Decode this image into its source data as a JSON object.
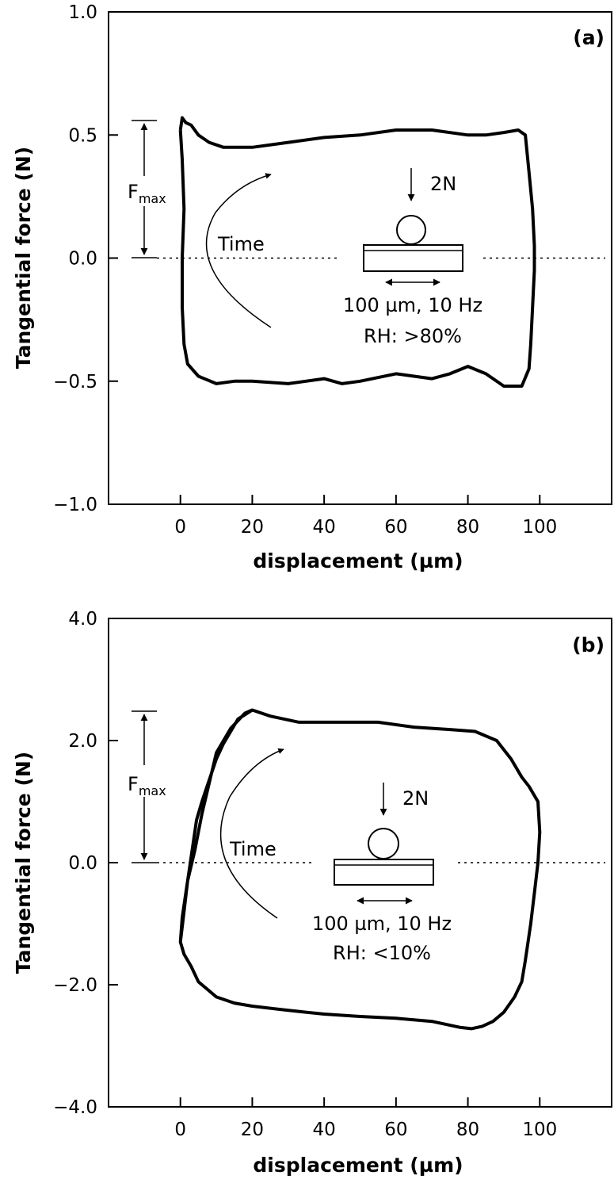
{
  "chart_data": [
    {
      "type": "line",
      "panel_label": "(a)",
      "xlabel": "displacement (µm)",
      "ylabel": "Tangential force (N)",
      "xlim": [
        -20,
        120
      ],
      "ylim": [
        -1.0,
        1.0
      ],
      "x_ticks": [
        0,
        20,
        40,
        60,
        80,
        100
      ],
      "x_tick_labels": [
        "0",
        "20",
        "40",
        "60",
        "80",
        "100"
      ],
      "y_ticks": [
        -1.0,
        -0.5,
        0.0,
        0.5,
        1.0
      ],
      "y_tick_labels": [
        "−1.0",
        "−0.5",
        "0.0",
        "0.5",
        "1.0"
      ],
      "grid": false,
      "zero_line": "dotted",
      "loop": {
        "x": [
          0,
          0.5,
          1.5,
          3,
          5,
          8,
          12,
          20,
          30,
          40,
          50,
          60,
          70,
          80,
          85,
          90,
          94,
          96,
          97,
          98,
          98.5,
          98.5,
          98,
          97.5,
          97,
          95,
          90,
          85,
          80,
          75,
          70,
          65,
          60,
          50,
          45,
          40,
          30,
          20,
          15,
          10,
          5,
          2,
          1,
          0.5,
          0.5,
          1,
          0.5,
          0
        ],
        "y": [
          0.52,
          0.57,
          0.55,
          0.54,
          0.5,
          0.47,
          0.45,
          0.45,
          0.47,
          0.49,
          0.5,
          0.52,
          0.52,
          0.5,
          0.5,
          0.51,
          0.52,
          0.5,
          0.35,
          0.2,
          0.05,
          -0.05,
          -0.2,
          -0.35,
          -0.45,
          -0.52,
          -0.52,
          -0.47,
          -0.44,
          -0.47,
          -0.49,
          -0.48,
          -0.47,
          -0.5,
          -0.51,
          -0.49,
          -0.51,
          -0.5,
          -0.5,
          -0.51,
          -0.48,
          -0.43,
          -0.35,
          -0.2,
          0.0,
          0.2,
          0.4,
          0.52
        ]
      },
      "annotations": {
        "fmax_label": "F",
        "fmax_subscript": "max",
        "time_label": "Time",
        "load_label": "2N",
        "condition_line1": "100 µm, 10 Hz",
        "condition_line2": "RH: >80%"
      }
    },
    {
      "type": "line",
      "panel_label": "(b)",
      "xlabel": "displacement (µm)",
      "ylabel": "Tangential force (N)",
      "xlim": [
        -20,
        120
      ],
      "ylim": [
        -4.0,
        4.0
      ],
      "x_ticks": [
        0,
        20,
        40,
        60,
        80,
        100
      ],
      "x_tick_labels": [
        "0",
        "20",
        "40",
        "60",
        "80",
        "100"
      ],
      "y_ticks": [
        -4.0,
        -2.0,
        0.0,
        2.0,
        4.0
      ],
      "y_tick_labels": [
        "−4.0",
        "−2.0",
        "0.0",
        "2.0",
        "4.0"
      ],
      "grid": false,
      "zero_line": "dotted",
      "loop": {
        "x": [
          0,
          1,
          2,
          4,
          6,
          8,
          10,
          14,
          18,
          20,
          25,
          33,
          45,
          55,
          65,
          75,
          82,
          88,
          92,
          95,
          97,
          99.5,
          100,
          99.5,
          98.5,
          97.5,
          96,
          95,
          93,
          90,
          87,
          84,
          81,
          78,
          70,
          60,
          50,
          40,
          30,
          20,
          15,
          10,
          5,
          3,
          1,
          0,
          0.5,
          1.5,
          2.5,
          3.5,
          4.5,
          6,
          8,
          10,
          12,
          14,
          16,
          20
        ],
        "y": [
          -1.3,
          -0.8,
          -0.3,
          0.2,
          0.8,
          1.3,
          1.8,
          2.2,
          2.45,
          2.5,
          2.4,
          2.3,
          2.3,
          2.3,
          2.22,
          2.18,
          2.15,
          2.0,
          1.7,
          1.4,
          1.25,
          1.0,
          0.5,
          0.0,
          -0.5,
          -1.0,
          -1.6,
          -1.95,
          -2.2,
          -2.45,
          -2.6,
          -2.68,
          -2.72,
          -2.7,
          -2.6,
          -2.55,
          -2.52,
          -2.48,
          -2.42,
          -2.35,
          -2.3,
          -2.2,
          -1.95,
          -1.7,
          -1.5,
          -1.3,
          -0.9,
          -0.5,
          -0.1,
          0.3,
          0.7,
          1.0,
          1.35,
          1.7,
          1.95,
          2.15,
          2.35,
          2.5
        ]
      },
      "annotations": {
        "fmax_label": "F",
        "fmax_subscript": "max",
        "time_label": "Time",
        "load_label": "2N",
        "condition_line1": "100 µm, 10 Hz",
        "condition_line2": "RH: <10%"
      }
    }
  ]
}
